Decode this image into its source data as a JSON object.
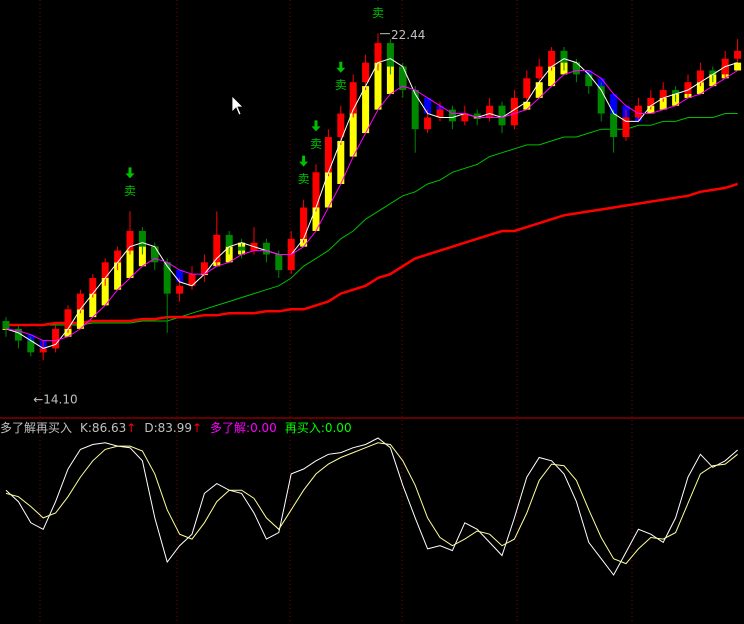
{
  "chart_data": [
    {
      "type": "candlestick",
      "ylim": [
        12.7,
        23.3
      ],
      "up_color": "#ff0000",
      "down_color": "#008800",
      "band_colors": [
        "#ffff00",
        "#0000ff"
      ],
      "ohlc": [
        [
          15.1,
          15.2,
          14.7,
          14.9
        ],
        [
          14.9,
          15.0,
          14.4,
          14.6
        ],
        [
          14.6,
          14.7,
          14.2,
          14.3
        ],
        [
          14.3,
          14.6,
          14.1,
          14.4
        ],
        [
          14.4,
          15.0,
          14.3,
          14.9
        ],
        [
          14.9,
          15.5,
          14.8,
          15.4
        ],
        [
          15.4,
          15.9,
          15.3,
          15.8
        ],
        [
          15.8,
          16.3,
          15.7,
          16.2
        ],
        [
          16.2,
          16.7,
          16.0,
          16.6
        ],
        [
          16.6,
          17.0,
          16.4,
          16.9
        ],
        [
          16.9,
          17.9,
          16.8,
          17.4
        ],
        [
          17.4,
          17.5,
          16.8,
          17.0
        ],
        [
          17.0,
          17.1,
          16.4,
          16.6
        ],
        [
          16.6,
          16.7,
          14.8,
          15.8
        ],
        [
          15.8,
          16.2,
          15.6,
          16.0
        ],
        [
          16.0,
          16.5,
          15.9,
          16.3
        ],
        [
          16.3,
          16.8,
          16.1,
          16.6
        ],
        [
          16.6,
          17.9,
          16.5,
          17.3
        ],
        [
          17.3,
          17.4,
          16.8,
          17.0
        ],
        [
          17.0,
          17.2,
          16.7,
          16.9
        ],
        [
          16.9,
          17.5,
          16.8,
          17.1
        ],
        [
          17.1,
          17.2,
          16.6,
          16.8
        ],
        [
          16.8,
          16.9,
          16.2,
          16.4
        ],
        [
          16.4,
          17.4,
          16.3,
          17.2
        ],
        [
          17.2,
          18.2,
          17.1,
          18.0
        ],
        [
          18.0,
          19.1,
          17.9,
          18.9
        ],
        [
          18.9,
          20.0,
          18.8,
          19.8
        ],
        [
          19.8,
          20.6,
          19.6,
          20.4
        ],
        [
          20.4,
          21.4,
          20.3,
          21.2
        ],
        [
          21.2,
          21.9,
          21.0,
          21.7
        ],
        [
          21.7,
          22.44,
          21.5,
          22.2
        ],
        [
          22.2,
          22.3,
          21.4,
          21.6
        ],
        [
          21.6,
          21.7,
          20.8,
          21.0
        ],
        [
          21.0,
          21.1,
          19.4,
          20.0
        ],
        [
          20.0,
          20.5,
          19.9,
          20.3
        ],
        [
          20.3,
          20.7,
          20.2,
          20.5
        ],
        [
          20.5,
          20.6,
          20.0,
          20.2
        ],
        [
          20.2,
          20.6,
          20.1,
          20.4
        ],
        [
          20.4,
          20.5,
          20.1,
          20.3
        ],
        [
          20.3,
          20.8,
          20.2,
          20.6
        ],
        [
          20.6,
          20.7,
          19.9,
          20.1
        ],
        [
          20.1,
          21.0,
          20.0,
          20.8
        ],
        [
          20.8,
          21.5,
          20.7,
          21.3
        ],
        [
          21.3,
          21.8,
          21.2,
          21.6
        ],
        [
          21.6,
          22.1,
          21.5,
          22.0
        ],
        [
          22.0,
          22.1,
          21.5,
          21.7
        ],
        [
          21.7,
          21.8,
          21.2,
          21.4
        ],
        [
          21.4,
          21.5,
          20.9,
          21.1
        ],
        [
          21.1,
          21.2,
          20.2,
          20.4
        ],
        [
          20.4,
          20.5,
          19.4,
          19.8
        ],
        [
          19.8,
          20.5,
          19.7,
          20.3
        ],
        [
          20.3,
          20.8,
          20.2,
          20.6
        ],
        [
          20.6,
          21.0,
          20.5,
          20.8
        ],
        [
          20.8,
          21.2,
          20.7,
          21.0
        ],
        [
          21.0,
          21.1,
          20.7,
          20.9
        ],
        [
          20.9,
          21.4,
          20.8,
          21.2
        ],
        [
          21.2,
          21.7,
          21.1,
          21.5
        ],
        [
          21.5,
          21.6,
          21.2,
          21.4
        ],
        [
          21.4,
          22.0,
          21.3,
          21.8
        ],
        [
          21.8,
          22.3,
          21.7,
          22.0
        ]
      ],
      "series": [
        {
          "color": "#ffffff",
          "values": [
            14.9,
            14.8,
            14.6,
            14.4,
            14.5,
            14.9,
            15.4,
            15.8,
            16.2,
            16.6,
            17.0,
            17.1,
            17.0,
            16.5,
            16.1,
            16.0,
            16.3,
            16.7,
            17.0,
            17.1,
            17.0,
            16.9,
            16.8,
            16.8,
            17.2,
            18.0,
            18.9,
            19.7,
            20.5,
            21.1,
            21.7,
            21.8,
            21.6,
            20.9,
            20.4,
            20.3,
            20.3,
            20.4,
            20.3,
            20.4,
            20.3,
            20.5,
            20.7,
            21.2,
            21.6,
            21.8,
            21.7,
            21.4,
            21.0,
            20.4,
            20.2,
            20.2,
            20.6,
            20.8,
            20.9,
            21.0,
            21.2,
            21.4,
            21.6,
            21.7
          ]
        },
        {
          "color": "#ff00ff",
          "values": [
            14.9,
            14.85,
            14.75,
            14.6,
            14.6,
            14.7,
            14.9,
            15.2,
            15.5,
            15.9,
            16.2,
            16.5,
            16.7,
            16.6,
            16.4,
            16.3,
            16.3,
            16.5,
            16.6,
            16.8,
            16.9,
            16.9,
            16.8,
            16.8,
            17.0,
            17.4,
            18.0,
            18.6,
            19.3,
            19.9,
            20.5,
            20.9,
            21.1,
            21.0,
            20.8,
            20.6,
            20.4,
            20.4,
            20.3,
            20.3,
            20.3,
            20.4,
            20.5,
            20.8,
            21.1,
            21.4,
            21.5,
            21.5,
            21.3,
            20.9,
            20.6,
            20.4,
            20.4,
            20.5,
            20.6,
            20.8,
            20.9,
            21.1,
            21.3,
            21.5
          ]
        },
        {
          "color": "#00c000",
          "values": [
            15.0,
            15.0,
            15.0,
            15.0,
            15.0,
            15.0,
            15.0,
            15.05,
            15.05,
            15.05,
            15.05,
            15.1,
            15.1,
            15.1,
            15.2,
            15.3,
            15.4,
            15.5,
            15.6,
            15.7,
            15.8,
            15.9,
            16.0,
            16.2,
            16.5,
            16.7,
            16.9,
            17.2,
            17.4,
            17.7,
            17.9,
            18.1,
            18.3,
            18.4,
            18.6,
            18.7,
            18.9,
            19.0,
            19.1,
            19.3,
            19.4,
            19.5,
            19.6,
            19.6,
            19.7,
            19.8,
            19.8,
            19.9,
            20.0,
            20.0,
            20.0,
            20.1,
            20.1,
            20.2,
            20.2,
            20.3,
            20.3,
            20.3,
            20.4,
            20.4
          ]
        },
        {
          "color": "#ff0000",
          "values": [
            15.0,
            15.0,
            15.0,
            15.0,
            15.05,
            15.05,
            15.05,
            15.1,
            15.1,
            15.1,
            15.1,
            15.15,
            15.15,
            15.2,
            15.2,
            15.2,
            15.25,
            15.25,
            15.3,
            15.3,
            15.3,
            15.35,
            15.35,
            15.4,
            15.4,
            15.5,
            15.6,
            15.8,
            15.9,
            16.0,
            16.2,
            16.3,
            16.5,
            16.7,
            16.8,
            16.9,
            17.0,
            17.1,
            17.2,
            17.3,
            17.4,
            17.4,
            17.5,
            17.6,
            17.7,
            17.8,
            17.85,
            17.9,
            17.95,
            18.0,
            18.05,
            18.1,
            18.15,
            18.2,
            18.25,
            18.3,
            18.4,
            18.45,
            18.5,
            18.6
          ]
        }
      ],
      "sell_marks": [
        {
          "index": 10,
          "text": "卖"
        },
        {
          "index": 24,
          "text": "卖"
        },
        {
          "index": 25,
          "text": "卖"
        },
        {
          "index": 27,
          "text": "卖"
        },
        {
          "index": 30,
          "text": "卖"
        }
      ],
      "sell_color": "#00c000",
      "annotations": [
        {
          "index": 30,
          "value": 22.44,
          "text": "22.44",
          "side": "top"
        },
        {
          "index": 3,
          "value": 14.1,
          "text": "←14.10",
          "side": "bottom"
        }
      ]
    },
    {
      "type": "line",
      "title": "多了解再买入",
      "ylim": [
        -20,
        105
      ],
      "legend": [
        {
          "text": "K:86.63",
          "color": "#c0c0c0",
          "arrow": "↑"
        },
        {
          "text": "D:83.99",
          "color": "#c0c0c0",
          "arrow": "↑"
        },
        {
          "text": "多了解:0.00",
          "color": "#ff00ff"
        },
        {
          "text": "再买入:0.00",
          "color": "#00ff00"
        }
      ],
      "arrow_color": "#ff0000",
      "series": [
        {
          "color": "#ffffff",
          "values": [
            62,
            55,
            42,
            38,
            55,
            75,
            87,
            90,
            91,
            89,
            88,
            80,
            45,
            18,
            28,
            35,
            60,
            66,
            62,
            60,
            48,
            32,
            36,
            72,
            75,
            80,
            84,
            85,
            88,
            90,
            94,
            88,
            65,
            45,
            26,
            28,
            25,
            42,
            38,
            30,
            22,
            45,
            70,
            82,
            80,
            72,
            55,
            30,
            20,
            10,
            24,
            38,
            35,
            30,
            45,
            70,
            84,
            76,
            80,
            86.63
          ]
        },
        {
          "color": "#ffff99",
          "values": [
            60,
            58,
            52,
            45,
            48,
            58,
            70,
            80,
            87,
            89,
            89,
            86,
            72,
            50,
            35,
            32,
            42,
            55,
            62,
            62,
            57,
            45,
            38,
            50,
            62,
            72,
            78,
            82,
            85,
            88,
            91,
            90,
            80,
            65,
            45,
            33,
            28,
            32,
            37,
            35,
            28,
            32,
            48,
            68,
            78,
            77,
            68,
            50,
            33,
            20,
            17,
            26,
            33,
            32,
            36,
            54,
            72,
            77,
            78,
            83.99
          ]
        }
      ]
    }
  ]
}
